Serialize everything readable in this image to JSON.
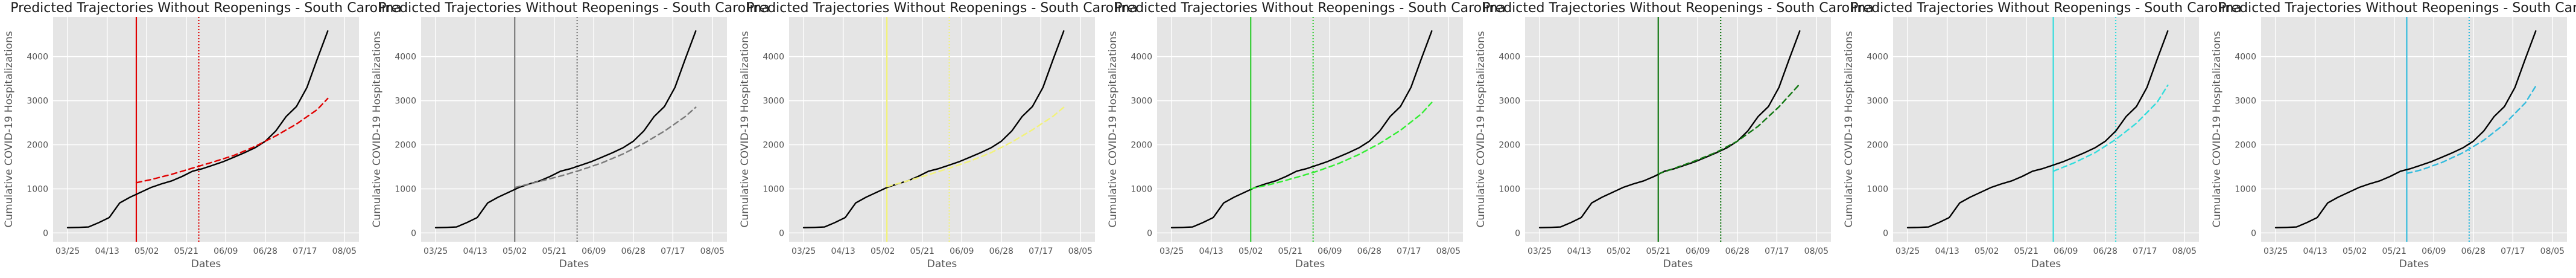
{
  "figure": {
    "background": "#ffffff",
    "axes_facecolor": "#e5e5e5",
    "grid_color": "#ffffff",
    "observed_color": "#000000"
  },
  "chart_data": [
    {
      "type": "line",
      "title": "Predicted Trajectories Without Reopenings - South Carolina",
      "xlabel": "Dates",
      "ylabel": "Cumulative COVID-19 Hospitalizations",
      "x_ticks": [
        "03/25",
        "04/13",
        "05/02",
        "05/21",
        "06/09",
        "06/28",
        "07/17",
        "08/05"
      ],
      "y_ticks": [
        0,
        1000,
        2000,
        3000,
        4000
      ],
      "xlim_days": [
        -7,
        140
      ],
      "ylim": [
        -200,
        4900
      ],
      "grid": true,
      "accent": "#e00000",
      "vline_solid": 33,
      "vline_dotted": 63,
      "series": [
        {
          "style": "solid",
          "color": "#000000",
          "x": [
            0,
            5,
            10,
            15,
            20,
            25,
            30,
            35,
            40,
            45,
            50,
            55,
            60,
            65,
            70,
            75,
            80,
            85,
            90,
            95,
            100,
            105,
            110,
            115,
            120,
            125
          ],
          "y": [
            120,
            125,
            135,
            235,
            350,
            680,
            810,
            920,
            1030,
            1110,
            1180,
            1280,
            1400,
            1460,
            1540,
            1620,
            1720,
            1820,
            1930,
            2080,
            2310,
            2640,
            2870,
            3300,
            3950,
            4580
          ]
        },
        {
          "style": "dashed",
          "color": "#e00000",
          "x": [
            33,
            40,
            50,
            60,
            70,
            80,
            90,
            100,
            110,
            120,
            125
          ],
          "y": [
            1140,
            1210,
            1330,
            1470,
            1610,
            1760,
            1960,
            2200,
            2470,
            2800,
            3050
          ]
        }
      ]
    },
    {
      "type": "line",
      "title": "Predicted Trajectories Without Reopenings - South Carolina",
      "xlabel": "Dates",
      "ylabel": "Cumulative COVID-19 Hospitalizations",
      "x_ticks": [
        "03/25",
        "04/13",
        "05/02",
        "05/21",
        "06/09",
        "06/28",
        "07/17",
        "08/05"
      ],
      "y_ticks": [
        0,
        1000,
        2000,
        3000,
        4000
      ],
      "xlim_days": [
        -7,
        140
      ],
      "ylim": [
        -200,
        4900
      ],
      "grid": true,
      "accent": "#7a7a7a",
      "vline_solid": 38,
      "vline_dotted": 68,
      "series": [
        {
          "style": "solid",
          "color": "#000000",
          "x": [
            0,
            5,
            10,
            15,
            20,
            25,
            30,
            35,
            40,
            45,
            50,
            55,
            60,
            65,
            70,
            75,
            80,
            85,
            90,
            95,
            100,
            105,
            110,
            115,
            120,
            125
          ],
          "y": [
            120,
            125,
            135,
            235,
            350,
            680,
            810,
            920,
            1030,
            1110,
            1180,
            1280,
            1400,
            1460,
            1540,
            1620,
            1720,
            1820,
            1930,
            2080,
            2310,
            2640,
            2870,
            3300,
            3950,
            4580
          ]
        },
        {
          "style": "dashed",
          "color": "#7a7a7a",
          "x": [
            38,
            50,
            60,
            70,
            80,
            90,
            100,
            110,
            120,
            125
          ],
          "y": [
            1030,
            1170,
            1290,
            1430,
            1590,
            1790,
            2030,
            2310,
            2640,
            2850
          ]
        }
      ]
    },
    {
      "type": "line",
      "title": "Predicted Trajectories Without Reopenings - South Carolina",
      "xlabel": "Dates",
      "ylabel": "Cumulative COVID-19 Hospitalizations",
      "x_ticks": [
        "03/25",
        "04/13",
        "05/02",
        "05/21",
        "06/09",
        "06/28",
        "07/17",
        "08/05"
      ],
      "y_ticks": [
        0,
        1000,
        2000,
        3000,
        4000
      ],
      "xlim_days": [
        -7,
        140
      ],
      "ylim": [
        -200,
        4900
      ],
      "grid": true,
      "accent": "#f2f27a",
      "vline_solid": 40,
      "vline_dotted": 70,
      "series": [
        {
          "style": "solid",
          "color": "#000000",
          "x": [
            0,
            5,
            10,
            15,
            20,
            25,
            30,
            35,
            40,
            45,
            50,
            55,
            60,
            65,
            70,
            75,
            80,
            85,
            90,
            95,
            100,
            105,
            110,
            115,
            120,
            125
          ],
          "y": [
            120,
            125,
            135,
            235,
            350,
            680,
            810,
            920,
            1030,
            1110,
            1180,
            1280,
            1400,
            1460,
            1540,
            1620,
            1720,
            1820,
            1930,
            2080,
            2310,
            2640,
            2870,
            3300,
            3950,
            4580
          ]
        },
        {
          "style": "dashed",
          "color": "#f2f27a",
          "x": [
            40,
            50,
            60,
            70,
            80,
            90,
            100,
            110,
            120,
            125
          ],
          "y": [
            1050,
            1180,
            1320,
            1470,
            1630,
            1820,
            2060,
            2340,
            2650,
            2850
          ]
        }
      ]
    },
    {
      "type": "line",
      "title": "Predicted Trajectories Without Reopenings - South Carolina",
      "xlabel": "Dates",
      "ylabel": "Cumulative COVID-19 Hospitalizations",
      "x_ticks": [
        "03/25",
        "04/13",
        "05/02",
        "05/21",
        "06/09",
        "06/28",
        "07/17",
        "08/05"
      ],
      "y_ticks": [
        0,
        1000,
        2000,
        3000,
        4000
      ],
      "xlim_days": [
        -7,
        140
      ],
      "ylim": [
        -200,
        4900
      ],
      "grid": true,
      "accent": "#33cc33",
      "vline_solid": 38,
      "vline_dotted": 68,
      "series": [
        {
          "style": "solid",
          "color": "#000000",
          "x": [
            0,
            5,
            10,
            15,
            20,
            25,
            30,
            35,
            40,
            45,
            50,
            55,
            60,
            65,
            70,
            75,
            80,
            85,
            90,
            95,
            100,
            105,
            110,
            115,
            120,
            125
          ],
          "y": [
            120,
            125,
            135,
            235,
            350,
            680,
            810,
            920,
            1030,
            1110,
            1180,
            1280,
            1400,
            1460,
            1540,
            1620,
            1720,
            1820,
            1930,
            2080,
            2310,
            2640,
            2870,
            3300,
            3950,
            4580
          ]
        },
        {
          "style": "dashed",
          "color": "#33ee33",
          "x": [
            38,
            50,
            60,
            70,
            80,
            90,
            100,
            110,
            120,
            125
          ],
          "y": [
            1000,
            1130,
            1260,
            1400,
            1570,
            1780,
            2030,
            2330,
            2700,
            2960
          ]
        }
      ]
    },
    {
      "type": "line",
      "title": "Predicted Trajectories Without Reopenings - South Carolina",
      "xlabel": "Dates",
      "ylabel": "Cumulative COVID-19 Hospitalizations",
      "x_ticks": [
        "03/25",
        "04/13",
        "05/02",
        "05/21",
        "06/09",
        "06/28",
        "07/17",
        "08/05"
      ],
      "y_ticks": [
        0,
        1000,
        2000,
        3000,
        4000
      ],
      "xlim_days": [
        -7,
        140
      ],
      "ylim": [
        -200,
        4900
      ],
      "grid": true,
      "accent": "#117711",
      "vline_solid": 57,
      "vline_dotted": 87,
      "series": [
        {
          "style": "solid",
          "color": "#000000",
          "x": [
            0,
            5,
            10,
            15,
            20,
            25,
            30,
            35,
            40,
            45,
            50,
            55,
            60,
            65,
            70,
            75,
            80,
            85,
            90,
            95,
            100,
            105,
            110,
            115,
            120,
            125
          ],
          "y": [
            120,
            125,
            135,
            235,
            350,
            680,
            810,
            920,
            1030,
            1110,
            1180,
            1280,
            1400,
            1460,
            1540,
            1620,
            1720,
            1820,
            1930,
            2080,
            2310,
            2640,
            2870,
            3300,
            3950,
            4580
          ]
        },
        {
          "style": "dashed",
          "color": "#117711",
          "x": [
            57,
            65,
            75,
            85,
            95,
            105,
            115,
            125
          ],
          "y": [
            1340,
            1470,
            1640,
            1830,
            2080,
            2420,
            2860,
            3380
          ]
        }
      ]
    },
    {
      "type": "line",
      "title": "Predicted Trajectories Without Reopenings - South Carolina",
      "xlabel": "Dates",
      "ylabel": "Cumulative COVID-19 Hospitalizations",
      "x_ticks": [
        "03/25",
        "04/13",
        "05/02",
        "05/21",
        "06/09",
        "06/28",
        "07/17",
        "08/05"
      ],
      "y_ticks": [
        0,
        1000,
        2000,
        3000,
        4000
      ],
      "xlim_days": [
        -7,
        140
      ],
      "ylim": [
        -200,
        4900
      ],
      "grid": true,
      "accent": "#33dddd",
      "vline_solid": 70,
      "vline_dotted": 100,
      "series": [
        {
          "style": "solid",
          "color": "#000000",
          "x": [
            0,
            5,
            10,
            15,
            20,
            25,
            30,
            35,
            40,
            45,
            50,
            55,
            60,
            65,
            70,
            75,
            80,
            85,
            90,
            95,
            100,
            105,
            110,
            115,
            120,
            125
          ],
          "y": [
            120,
            125,
            135,
            235,
            350,
            680,
            810,
            920,
            1030,
            1110,
            1180,
            1280,
            1400,
            1460,
            1540,
            1620,
            1720,
            1820,
            1930,
            2080,
            2310,
            2640,
            2870,
            3300,
            3950,
            4580
          ]
        },
        {
          "style": "dashed",
          "color": "#33dddd",
          "x": [
            70,
            80,
            90,
            100,
            110,
            120,
            125
          ],
          "y": [
            1400,
            1590,
            1820,
            2120,
            2490,
            2970,
            3350
          ]
        }
      ]
    },
    {
      "type": "line",
      "title": "Predicted Trajectories Without Reopenings - South Carolina",
      "xlabel": "Dates",
      "ylabel": "Cumulative COVID-19 Hospitalizations",
      "x_ticks": [
        "03/25",
        "04/13",
        "05/02",
        "05/21",
        "06/09",
        "06/28",
        "07/17",
        "08/05"
      ],
      "y_ticks": [
        0,
        1000,
        2000,
        3000,
        4000
      ],
      "xlim_days": [
        -7,
        140
      ],
      "ylim": [
        -200,
        4900
      ],
      "grid": true,
      "accent": "#33bbdd",
      "vline_solid": 63,
      "vline_dotted": 93,
      "series": [
        {
          "style": "solid",
          "color": "#000000",
          "x": [
            0,
            5,
            10,
            15,
            20,
            25,
            30,
            35,
            40,
            45,
            50,
            55,
            60,
            65,
            70,
            75,
            80,
            85,
            90,
            95,
            100,
            105,
            110,
            115,
            120,
            125
          ],
          "y": [
            120,
            125,
            135,
            235,
            350,
            680,
            810,
            920,
            1030,
            1110,
            1180,
            1280,
            1400,
            1460,
            1540,
            1620,
            1720,
            1820,
            1930,
            2080,
            2310,
            2640,
            2870,
            3300,
            3950,
            4580
          ]
        },
        {
          "style": "dashed",
          "color": "#33bbdd",
          "x": [
            63,
            70,
            80,
            90,
            100,
            110,
            120,
            125
          ],
          "y": [
            1350,
            1430,
            1600,
            1820,
            2100,
            2470,
            2950,
            3330
          ]
        }
      ]
    }
  ]
}
